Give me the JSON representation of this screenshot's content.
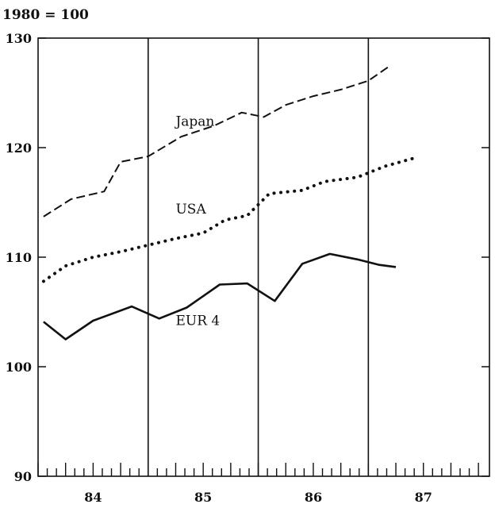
{
  "chart_data": {
    "type": "line",
    "title": "1980 = 100",
    "xlabel": "",
    "ylabel": "",
    "xlim": [
      83.5,
      87.6
    ],
    "ylim": [
      90,
      130
    ],
    "yticks": [
      90,
      100,
      110,
      120,
      130
    ],
    "xtick_labels": [
      {
        "x": 84,
        "label": "84"
      },
      {
        "x": 85,
        "label": "85"
      },
      {
        "x": 86,
        "label": "86"
      },
      {
        "x": 87,
        "label": "87"
      }
    ],
    "year_dividers": [
      84.5,
      85.5,
      86.5
    ],
    "grid": false,
    "legend": "none",
    "series": [
      {
        "name": "Japan",
        "style": "dashed",
        "color": "#111111",
        "label_at": [
          84.75,
          122
        ],
        "points": [
          [
            83.55,
            113.7
          ],
          [
            83.8,
            115.3
          ],
          [
            84.1,
            116
          ],
          [
            84.25,
            118.7
          ],
          [
            84.5,
            119.2
          ],
          [
            84.8,
            121
          ],
          [
            85.1,
            122
          ],
          [
            85.35,
            123.2
          ],
          [
            85.55,
            122.8
          ],
          [
            85.75,
            123.9
          ],
          [
            86.0,
            124.7
          ],
          [
            86.25,
            125.3
          ],
          [
            86.5,
            126.1
          ],
          [
            86.7,
            127.5
          ]
        ]
      },
      {
        "name": "USA",
        "style": "dotted",
        "color": "#111111",
        "label_at": [
          84.75,
          114
        ],
        "points": [
          [
            83.55,
            107.8
          ],
          [
            83.75,
            109.2
          ],
          [
            84.0,
            110
          ],
          [
            84.25,
            110.5
          ],
          [
            84.5,
            111.1
          ],
          [
            84.75,
            111.7
          ],
          [
            85.0,
            112.2
          ],
          [
            85.2,
            113.4
          ],
          [
            85.4,
            113.8
          ],
          [
            85.6,
            115.8
          ],
          [
            85.9,
            116.1
          ],
          [
            86.1,
            116.9
          ],
          [
            86.4,
            117.3
          ],
          [
            86.65,
            118.3
          ],
          [
            86.9,
            119
          ]
        ]
      },
      {
        "name": "EUR 4",
        "style": "solid",
        "color": "#111111",
        "label_at": [
          84.75,
          103.8
        ],
        "points": [
          [
            83.55,
            104.1
          ],
          [
            83.75,
            102.5
          ],
          [
            84.0,
            104.2
          ],
          [
            84.35,
            105.5
          ],
          [
            84.6,
            104.4
          ],
          [
            84.85,
            105.4
          ],
          [
            85.15,
            107.5
          ],
          [
            85.4,
            107.6
          ],
          [
            85.65,
            106
          ],
          [
            85.9,
            109.4
          ],
          [
            86.15,
            110.3
          ],
          [
            86.4,
            109.8
          ],
          [
            86.6,
            109.3
          ],
          [
            86.75,
            109.1
          ]
        ]
      }
    ]
  }
}
